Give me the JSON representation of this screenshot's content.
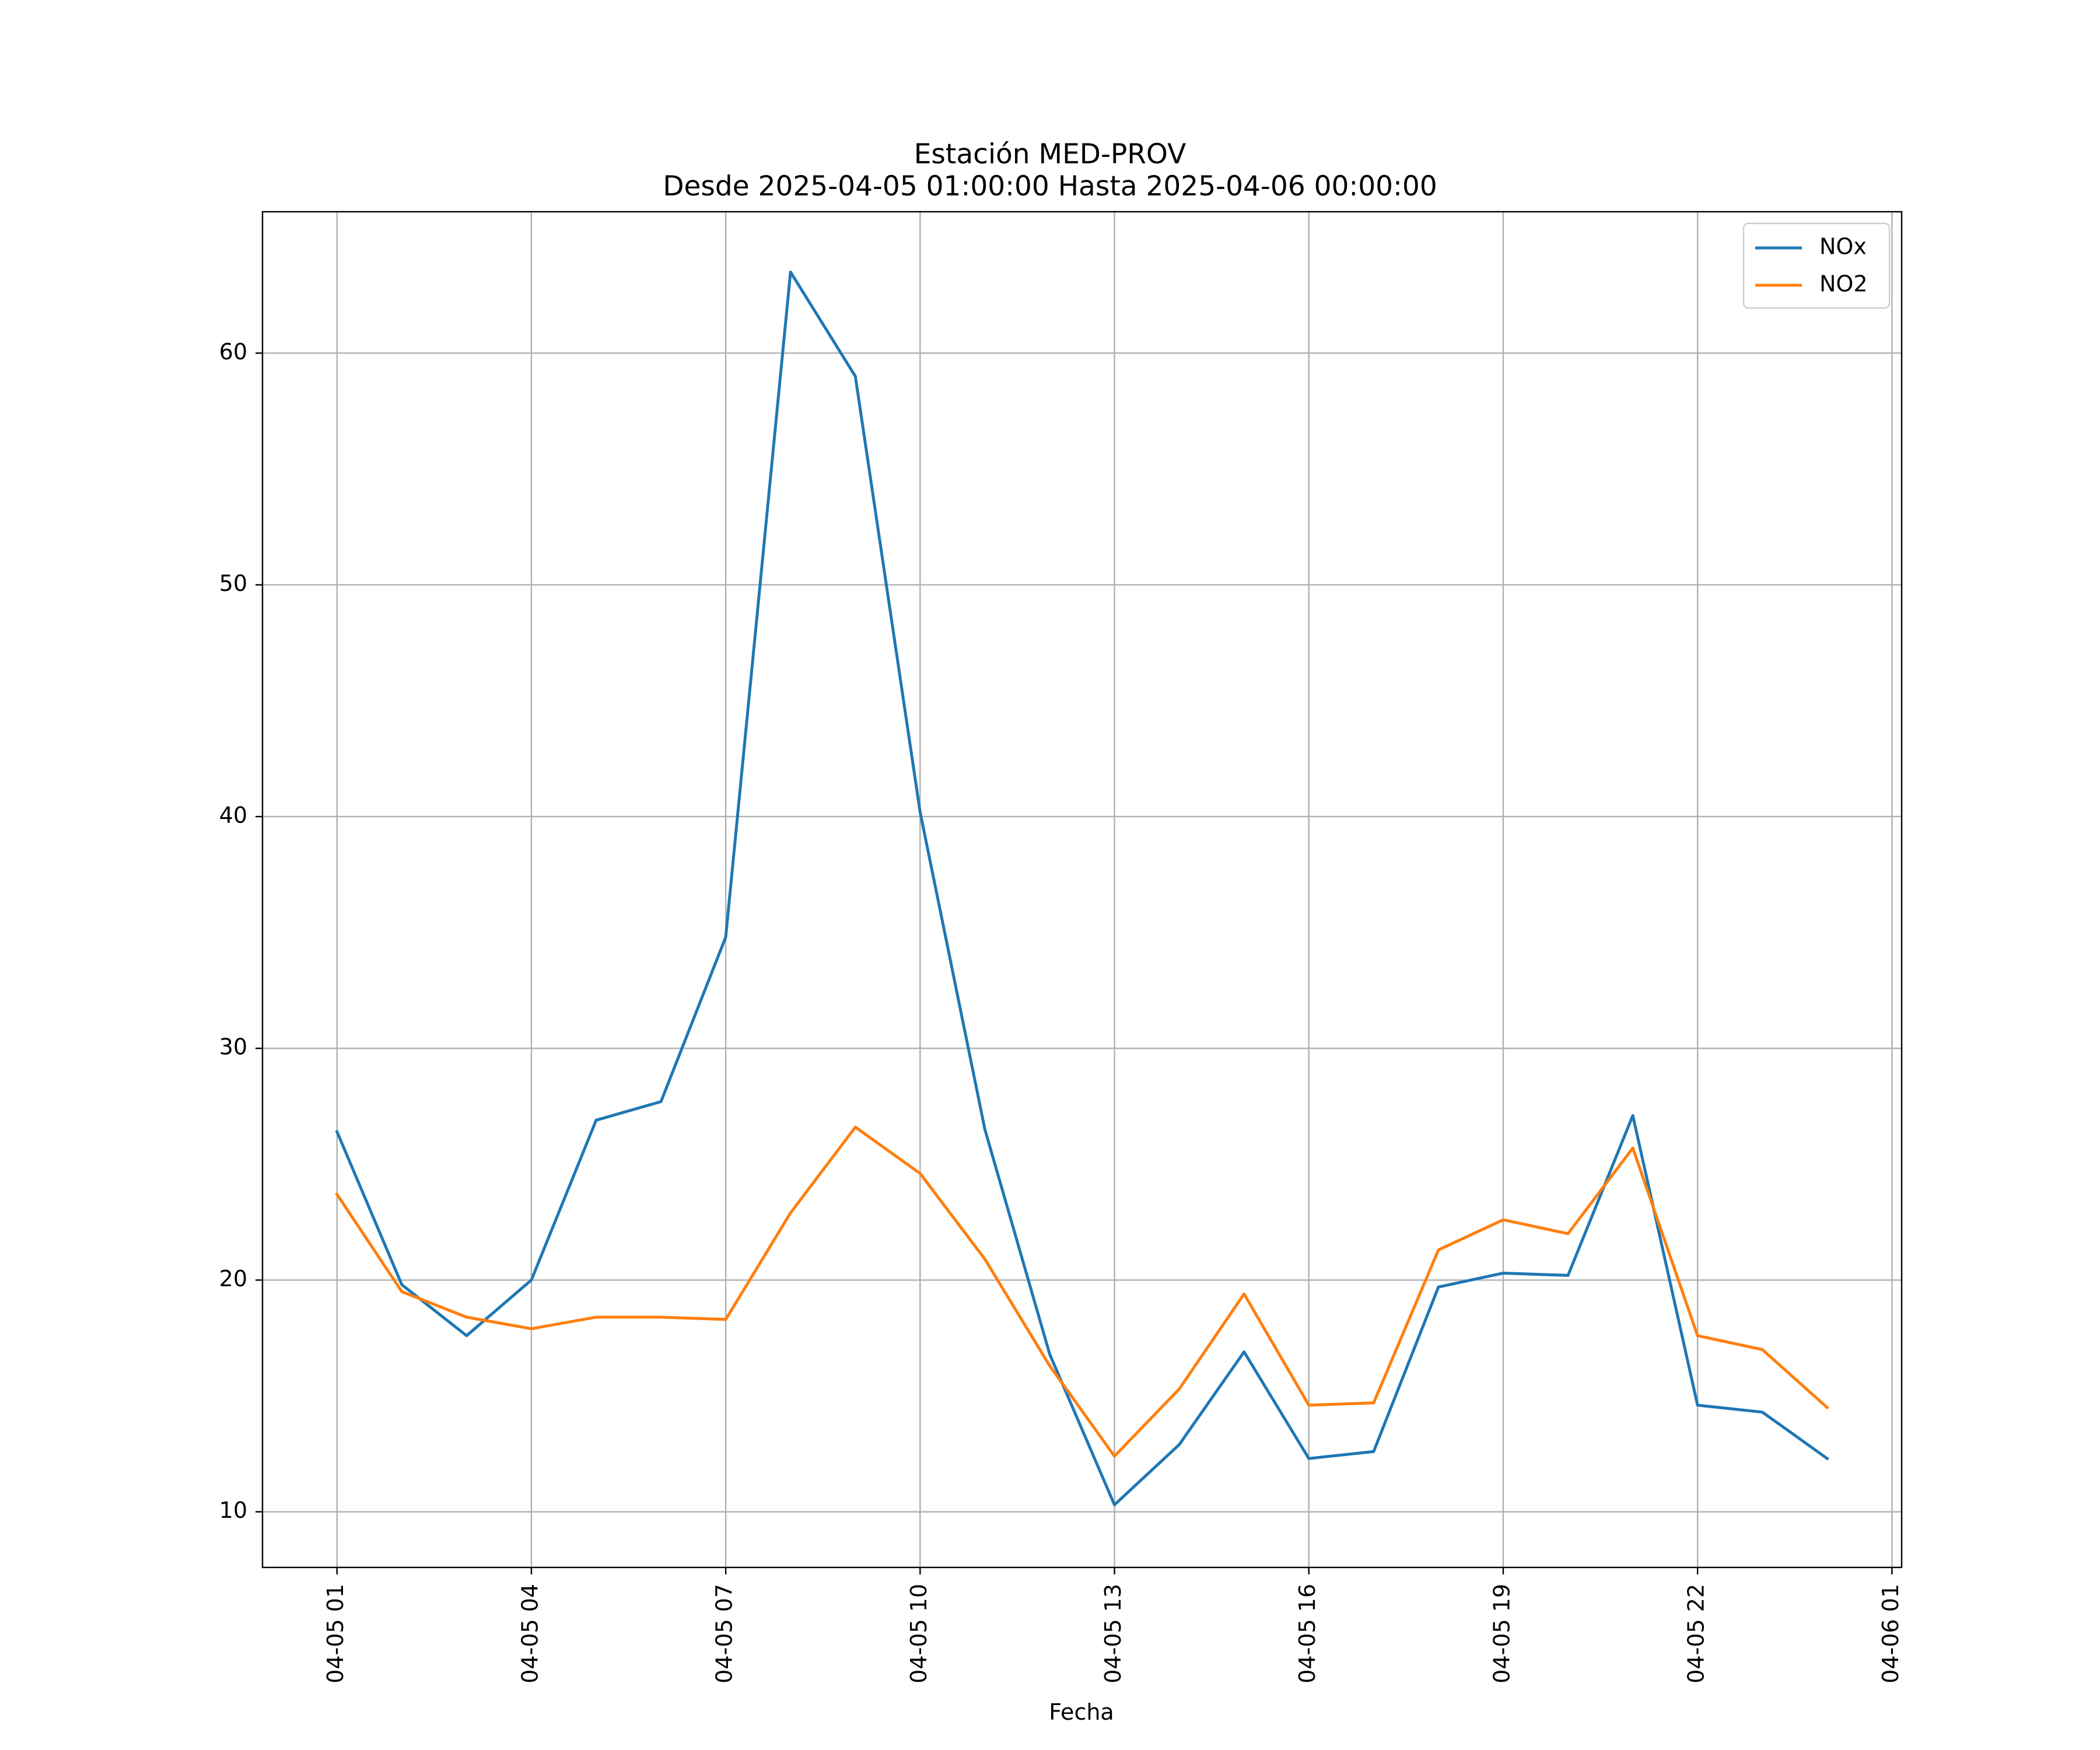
{
  "chart_data": {
    "type": "line",
    "title": "Estación MED-PROV",
    "subtitle": "Desde 2025-04-05 01:00:00 Hasta 2025-04-06 00:00:00",
    "xlabel": "Fecha",
    "ylabel": "",
    "x": [
      "2025-04-05 01:00",
      "2025-04-05 02:00",
      "2025-04-05 03:00",
      "2025-04-05 04:00",
      "2025-04-05 05:00",
      "2025-04-05 06:00",
      "2025-04-05 07:00",
      "2025-04-05 08:00",
      "2025-04-05 09:00",
      "2025-04-05 10:00",
      "2025-04-05 11:00",
      "2025-04-05 12:00",
      "2025-04-05 13:00",
      "2025-04-05 14:00",
      "2025-04-05 15:00",
      "2025-04-05 16:00",
      "2025-04-05 17:00",
      "2025-04-05 18:00",
      "2025-04-05 19:00",
      "2025-04-05 20:00",
      "2025-04-05 21:00",
      "2025-04-05 22:00",
      "2025-04-05 23:00",
      "2025-04-06 00:00"
    ],
    "series": [
      {
        "name": "NOx",
        "color": "#1f77b4",
        "values": [
          26.4,
          19.8,
          17.6,
          20.0,
          26.9,
          27.7,
          34.8,
          63.5,
          59.0,
          40.2,
          26.5,
          16.8,
          10.3,
          12.9,
          16.9,
          12.3,
          12.6,
          19.7,
          20.3,
          20.2,
          27.1,
          14.6,
          14.3,
          12.3
        ]
      },
      {
        "name": "NO2",
        "color": "#ff7f0e",
        "values": [
          23.7,
          19.5,
          18.4,
          17.9,
          18.4,
          18.4,
          18.3,
          22.9,
          26.6,
          24.6,
          20.9,
          16.3,
          12.4,
          15.3,
          19.4,
          14.6,
          14.7,
          21.3,
          22.6,
          22.0,
          25.7,
          17.6,
          17.0,
          14.5
        ]
      }
    ],
    "xticks": [
      "04-05 01",
      "04-05 04",
      "04-05 07",
      "04-05 10",
      "04-05 13",
      "04-05 16",
      "04-05 19",
      "04-05 22",
      "04-06 01"
    ],
    "yticks": [
      10,
      20,
      30,
      40,
      50,
      60
    ],
    "ylim": [
      7.6,
      66.1
    ],
    "xlim": [
      "2025-04-04 23:51",
      "2025-04-06 01:09"
    ],
    "grid": true,
    "legend_position": "top-right"
  }
}
